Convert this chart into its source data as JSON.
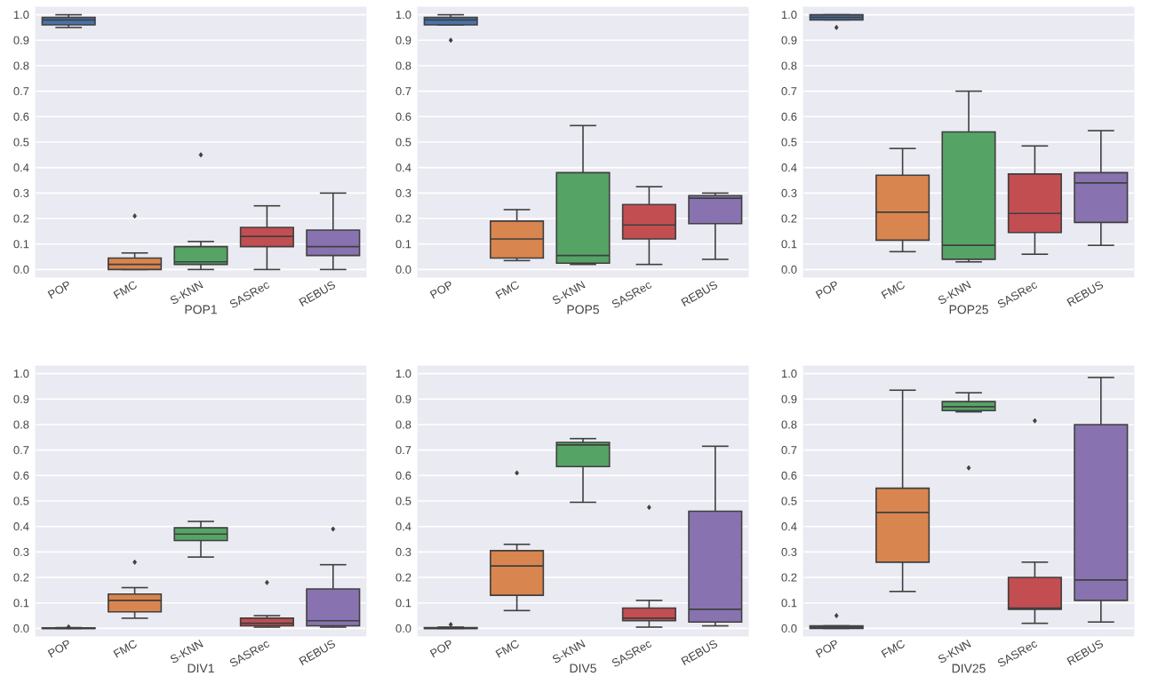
{
  "chart_data": [
    {
      "type": "box",
      "xlabel": "POP1",
      "categories": [
        "POP",
        "FMC",
        "S-KNN",
        "SASRec",
        "REBUS"
      ],
      "colors": [
        "#4a72a8",
        "#d9854f",
        "#55a465",
        "#c24e52",
        "#8873b0"
      ],
      "ylim": [
        -0.03,
        1.03
      ],
      "yticks": [
        {
          "value": 0,
          "label": "0.0"
        },
        {
          "value": 0.1,
          "label": "0.1"
        },
        {
          "value": 0.2,
          "label": "0.2"
        },
        {
          "value": 0.3,
          "label": "0.3"
        },
        {
          "value": 0.4,
          "label": "0.4"
        },
        {
          "value": 0.5,
          "label": "0.5"
        },
        {
          "value": 0.6,
          "label": "0.6"
        },
        {
          "value": 0.7,
          "label": "0.7"
        },
        {
          "value": 0.8,
          "label": "0.8"
        },
        {
          "value": 0.9,
          "label": "0.9"
        },
        {
          "value": 1,
          "label": "1.0"
        }
      ],
      "grid": "y",
      "boxes": [
        {
          "low": 0.95,
          "q1": 0.96,
          "median": 0.98,
          "q3": 0.99,
          "high": 1.0
        },
        {
          "low": 0,
          "q1": 0,
          "median": 0.02,
          "q3": 0.045,
          "high": 0.065,
          "outliers": [
            0.21
          ]
        },
        {
          "low": 0,
          "q1": 0.02,
          "median": 0.03,
          "q3": 0.09,
          "high": 0.11,
          "outliers": [
            0.45
          ]
        },
        {
          "low": 0,
          "q1": 0.09,
          "median": 0.13,
          "q3": 0.165,
          "high": 0.25
        },
        {
          "low": 0,
          "q1": 0.055,
          "median": 0.09,
          "q3": 0.155,
          "high": 0.3
        }
      ]
    },
    {
      "type": "box",
      "xlabel": "POP5",
      "categories": [
        "POP",
        "FMC",
        "S-KNN",
        "SASRec",
        "REBUS"
      ],
      "colors": [
        "#4a72a8",
        "#d9854f",
        "#55a465",
        "#c24e52",
        "#8873b0"
      ],
      "ylim": [
        -0.03,
        1.03
      ],
      "yticks": [
        {
          "value": 0,
          "label": "0.0"
        },
        {
          "value": 0.1,
          "label": "0.1"
        },
        {
          "value": 0.2,
          "label": "0.2"
        },
        {
          "value": 0.3,
          "label": "0.3"
        },
        {
          "value": 0.4,
          "label": "0.4"
        },
        {
          "value": 0.5,
          "label": "0.5"
        },
        {
          "value": 0.6,
          "label": "0.6"
        },
        {
          "value": 0.7,
          "label": "0.7"
        },
        {
          "value": 0.8,
          "label": "0.8"
        },
        {
          "value": 0.9,
          "label": "0.9"
        },
        {
          "value": 1,
          "label": "1.0"
        }
      ],
      "grid": "y",
      "boxes": [
        {
          "low": 0.96,
          "q1": 0.96,
          "median": 0.98,
          "q3": 0.99,
          "high": 1.0,
          "outliers": [
            0.9
          ]
        },
        {
          "low": 0.035,
          "q1": 0.045,
          "median": 0.12,
          "q3": 0.19,
          "high": 0.235
        },
        {
          "low": 0.02,
          "q1": 0.025,
          "median": 0.055,
          "q3": 0.38,
          "high": 0.565
        },
        {
          "low": 0.02,
          "q1": 0.12,
          "median": 0.175,
          "q3": 0.255,
          "high": 0.325
        },
        {
          "low": 0.04,
          "q1": 0.18,
          "median": 0.28,
          "q3": 0.29,
          "high": 0.3
        }
      ]
    },
    {
      "type": "box",
      "xlabel": "POP25",
      "categories": [
        "POP",
        "FMC",
        "S-KNN",
        "SASRec",
        "REBUS"
      ],
      "colors": [
        "#4a72a8",
        "#d9854f",
        "#55a465",
        "#c24e52",
        "#8873b0"
      ],
      "ylim": [
        -0.03,
        1.03
      ],
      "yticks": [
        {
          "value": 0,
          "label": "0.0"
        },
        {
          "value": 0.1,
          "label": "0.1"
        },
        {
          "value": 0.2,
          "label": "0.2"
        },
        {
          "value": 0.3,
          "label": "0.3"
        },
        {
          "value": 0.4,
          "label": "0.4"
        },
        {
          "value": 0.5,
          "label": "0.5"
        },
        {
          "value": 0.6,
          "label": "0.6"
        },
        {
          "value": 0.7,
          "label": "0.7"
        },
        {
          "value": 0.8,
          "label": "0.8"
        },
        {
          "value": 0.9,
          "label": "0.9"
        },
        {
          "value": 1,
          "label": "1.0"
        }
      ],
      "grid": "y",
      "boxes": [
        {
          "low": 0.98,
          "q1": 0.98,
          "median": 0.99,
          "q3": 1.0,
          "high": 1.0,
          "outliers": [
            0.95
          ]
        },
        {
          "low": 0.07,
          "q1": 0.115,
          "median": 0.225,
          "q3": 0.37,
          "high": 0.475
        },
        {
          "low": 0.03,
          "q1": 0.04,
          "median": 0.095,
          "q3": 0.54,
          "high": 0.7
        },
        {
          "low": 0.06,
          "q1": 0.145,
          "median": 0.22,
          "q3": 0.375,
          "high": 0.485
        },
        {
          "low": 0.095,
          "q1": 0.185,
          "median": 0.34,
          "q3": 0.38,
          "high": 0.545
        }
      ]
    },
    {
      "type": "box",
      "xlabel": "DIV1",
      "categories": [
        "POP",
        "FMC",
        "S-KNN",
        "SASRec",
        "REBUS"
      ],
      "colors": [
        "#4a72a8",
        "#d9854f",
        "#55a465",
        "#c24e52",
        "#8873b0"
      ],
      "ylim": [
        -0.03,
        1.03
      ],
      "yticks": [
        {
          "value": 0,
          "label": "0.0"
        },
        {
          "value": 0.1,
          "label": "0.1"
        },
        {
          "value": 0.2,
          "label": "0.2"
        },
        {
          "value": 0.3,
          "label": "0.3"
        },
        {
          "value": 0.4,
          "label": "0.4"
        },
        {
          "value": 0.5,
          "label": "0.5"
        },
        {
          "value": 0.6,
          "label": "0.6"
        },
        {
          "value": 0.7,
          "label": "0.7"
        },
        {
          "value": 0.8,
          "label": "0.8"
        },
        {
          "value": 0.9,
          "label": "0.9"
        },
        {
          "value": 1,
          "label": "1.0"
        }
      ],
      "grid": "y",
      "boxes": [
        {
          "low": 0,
          "q1": 0,
          "median": 0,
          "q3": 0.002,
          "high": 0.003,
          "outliers": [
            0.006
          ]
        },
        {
          "low": 0.04,
          "q1": 0.065,
          "median": 0.11,
          "q3": 0.135,
          "high": 0.16,
          "outliers": [
            0.26
          ]
        },
        {
          "low": 0.28,
          "q1": 0.345,
          "median": 0.37,
          "q3": 0.395,
          "high": 0.42
        },
        {
          "low": 0.005,
          "q1": 0.01,
          "median": 0.02,
          "q3": 0.04,
          "high": 0.05,
          "outliers": [
            0.18
          ]
        },
        {
          "low": 0.005,
          "q1": 0.01,
          "median": 0.03,
          "q3": 0.155,
          "high": 0.25,
          "outliers": [
            0.39
          ]
        }
      ]
    },
    {
      "type": "box",
      "xlabel": "DIV5",
      "categories": [
        "POP",
        "FMC",
        "S-KNN",
        "SASRec",
        "REBUS"
      ],
      "colors": [
        "#4a72a8",
        "#d9854f",
        "#55a465",
        "#c24e52",
        "#8873b0"
      ],
      "ylim": [
        -0.03,
        1.03
      ],
      "yticks": [
        {
          "value": 0,
          "label": "0.0"
        },
        {
          "value": 0.1,
          "label": "0.1"
        },
        {
          "value": 0.2,
          "label": "0.2"
        },
        {
          "value": 0.3,
          "label": "0.3"
        },
        {
          "value": 0.4,
          "label": "0.4"
        },
        {
          "value": 0.5,
          "label": "0.5"
        },
        {
          "value": 0.6,
          "label": "0.6"
        },
        {
          "value": 0.7,
          "label": "0.7"
        },
        {
          "value": 0.8,
          "label": "0.8"
        },
        {
          "value": 0.9,
          "label": "0.9"
        },
        {
          "value": 1,
          "label": "1.0"
        }
      ],
      "grid": "y",
      "boxes": [
        {
          "low": 0,
          "q1": 0,
          "median": 0,
          "q3": 0.003,
          "high": 0.005,
          "outliers": [
            0.015
          ]
        },
        {
          "low": 0.07,
          "q1": 0.13,
          "median": 0.245,
          "q3": 0.305,
          "high": 0.33,
          "outliers": [
            0.61
          ]
        },
        {
          "low": 0.495,
          "q1": 0.635,
          "median": 0.72,
          "q3": 0.73,
          "high": 0.745
        },
        {
          "low": 0.005,
          "q1": 0.03,
          "median": 0.04,
          "q3": 0.08,
          "high": 0.11,
          "outliers": [
            0.475
          ]
        },
        {
          "low": 0.01,
          "q1": 0.025,
          "median": 0.075,
          "q3": 0.46,
          "high": 0.715
        }
      ]
    },
    {
      "type": "box",
      "xlabel": "DIV25",
      "categories": [
        "POP",
        "FMC",
        "S-KNN",
        "SASRec",
        "REBUS"
      ],
      "colors": [
        "#4a72a8",
        "#d9854f",
        "#55a465",
        "#c24e52",
        "#8873b0"
      ],
      "ylim": [
        -0.03,
        1.03
      ],
      "yticks": [
        {
          "value": 0,
          "label": "0.0"
        },
        {
          "value": 0.1,
          "label": "0.1"
        },
        {
          "value": 0.2,
          "label": "0.2"
        },
        {
          "value": 0.3,
          "label": "0.3"
        },
        {
          "value": 0.4,
          "label": "0.4"
        },
        {
          "value": 0.5,
          "label": "0.5"
        },
        {
          "value": 0.6,
          "label": "0.6"
        },
        {
          "value": 0.7,
          "label": "0.7"
        },
        {
          "value": 0.8,
          "label": "0.8"
        },
        {
          "value": 0.9,
          "label": "0.9"
        },
        {
          "value": 1,
          "label": "1.0"
        }
      ],
      "grid": "y",
      "boxes": [
        {
          "low": 0,
          "q1": 0,
          "median": 0.005,
          "q3": 0.01,
          "high": 0.01,
          "outliers": [
            0.05
          ]
        },
        {
          "low": 0.145,
          "q1": 0.26,
          "median": 0.455,
          "q3": 0.55,
          "high": 0.935
        },
        {
          "low": 0.85,
          "q1": 0.855,
          "median": 0.87,
          "q3": 0.89,
          "high": 0.925,
          "outliers": [
            0.63
          ]
        },
        {
          "low": 0.02,
          "q1": 0.075,
          "median": 0.08,
          "q3": 0.2,
          "high": 0.26,
          "outliers": [
            0.815
          ]
        },
        {
          "low": 0.025,
          "q1": 0.11,
          "median": 0.19,
          "q3": 0.8,
          "high": 0.985
        }
      ]
    }
  ]
}
